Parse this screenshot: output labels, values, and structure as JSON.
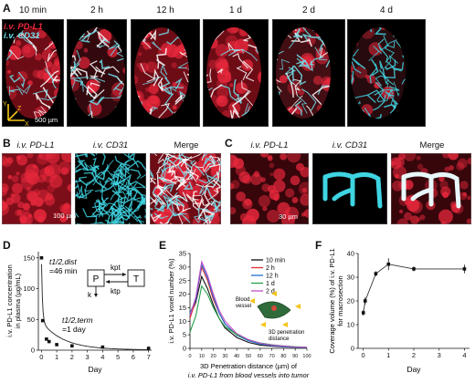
{
  "figure": {
    "panel_letters": {
      "a": "A",
      "b": "B",
      "c": "C",
      "d": "D",
      "e": "E",
      "f": "F"
    },
    "panel_a": {
      "time_labels": [
        "10 min",
        "2 h",
        "12 h",
        "1 d",
        "2 d",
        "4 d"
      ],
      "legend_pdl1": "i.v. PD-L1",
      "legend_cd31": "i.v. CD31",
      "scale_bar": "500 µm",
      "axis_x": "X",
      "axis_y": "Y",
      "axis_z": "Z"
    },
    "panel_b": {
      "titles": [
        "i.v. PD-L1",
        "i.v. CD31",
        "Merge"
      ],
      "scale_bar": "100 µm"
    },
    "panel_c": {
      "titles": [
        "i.v. PD-L1",
        "i.v. CD31",
        "Merge"
      ],
      "scale_bar": "30 µm"
    },
    "colors": {
      "pdl1": "#e8283c",
      "cd31": "#28c8d8",
      "axis_yellow": "#f5c518"
    }
  },
  "chart_data": [
    {
      "type": "scatter",
      "panel": "D",
      "ylabel": "i.v. PD-L1 concentration in plasma (µg/mL)",
      "xlabel": "Day",
      "xlim": [
        -0.2,
        7.2
      ],
      "ylim": [
        0,
        160
      ],
      "xticks": [
        "0",
        "1",
        "2",
        "3",
        "4",
        "5",
        "6",
        "7"
      ],
      "yticks": [
        "0",
        "50",
        "100",
        "150"
      ],
      "x": [
        0.007,
        0.08,
        0.33,
        0.5,
        1,
        2,
        4,
        7
      ],
      "y": [
        150,
        48,
        18,
        14,
        9,
        7,
        5,
        3
      ],
      "annotations": {
        "t_half_dist": "t1/2,dist",
        "t_half_dist_value": "=46 min",
        "t_half_term": "t1/2,term",
        "t_half_term_value": "=1 day"
      },
      "model": {
        "P": "P",
        "T": "T",
        "kpt": "kpt",
        "ktp": "ktp",
        "k": "k"
      }
    },
    {
      "type": "line",
      "panel": "E",
      "ylabel": "i.v. PD-L1 voxel number (%)",
      "xlabel": "3D Penetration distance (µm) of i.v. PD-L1 from blood vessels into tumor",
      "xlim": [
        0,
        100
      ],
      "ylim": [
        0,
        35
      ],
      "xticks": [
        "0",
        "10",
        "20",
        "30",
        "40",
        "50",
        "60",
        "70",
        "80",
        "90",
        "100"
      ],
      "yticks": [
        "0",
        "5",
        "10",
        "15",
        "20",
        "25",
        "30",
        "35"
      ],
      "x": [
        0,
        5,
        10,
        15,
        20,
        25,
        30,
        40,
        50,
        60,
        70,
        80,
        90,
        100
      ],
      "series": [
        {
          "name": "10 min",
          "color": "#111111",
          "values": [
            12,
            17,
            26.5,
            22,
            16,
            11,
            7.5,
            4,
            2.2,
            1.2,
            0.8,
            0.5,
            0.4,
            0.3
          ]
        },
        {
          "name": "2 h",
          "color": "#e03030",
          "values": [
            11,
            18,
            30,
            25,
            18,
            13,
            9,
            5,
            3,
            1.8,
            1.1,
            0.7,
            0.5,
            0.4
          ]
        },
        {
          "name": "12 h",
          "color": "#1f6fd0",
          "values": [
            13,
            18,
            31,
            26,
            19,
            13,
            9,
            4.8,
            2.8,
            1.6,
            1.0,
            0.6,
            0.4,
            0.3
          ]
        },
        {
          "name": "1 d",
          "color": "#22a04a",
          "values": [
            6,
            12,
            23,
            20,
            15,
            11,
            8,
            5,
            3.2,
            2.0,
            1.3,
            0.9,
            0.6,
            0.4
          ]
        },
        {
          "name": "2 d",
          "color": "#c050c8",
          "values": [
            12,
            19,
            32,
            27,
            20,
            14,
            10,
            5.5,
            3.2,
            1.9,
            1.2,
            0.8,
            0.5,
            0.4
          ]
        }
      ],
      "inset_labels": {
        "vessel": "Blood vessel",
        "distance": "3D penetration distance"
      }
    },
    {
      "type": "scatter",
      "panel": "F",
      "ylabel": "Coverage volume (%) of i.v. PD-L1 for macrosection",
      "xlabel": "Day",
      "xlim": [
        -0.2,
        4.2
      ],
      "ylim": [
        0,
        40
      ],
      "xticks": [
        "0",
        "1",
        "2",
        "3",
        "4"
      ],
      "yticks": [
        "0",
        "10",
        "20",
        "30",
        "40"
      ],
      "x": [
        0.007,
        0.08,
        0.5,
        1,
        2,
        4
      ],
      "y": [
        15,
        20,
        31.5,
        35.5,
        33.5,
        33.5
      ],
      "err": [
        1.2,
        1.5,
        1.0,
        2.5,
        1.0,
        1.8
      ]
    }
  ]
}
